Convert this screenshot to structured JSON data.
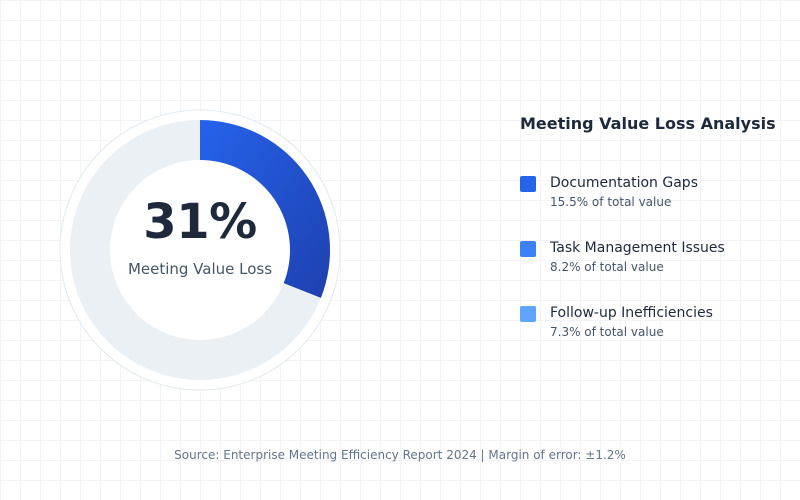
{
  "chart_data": {
    "type": "pie",
    "title": "Meeting Value Loss Analysis",
    "highlight": {
      "value_text": "31%",
      "value": 31,
      "label": "Meeting Value Loss",
      "color": "#1d4ed8"
    },
    "track_color": "#ebf0f5",
    "categories": [
      {
        "name": "Documentation Gaps",
        "detail": "15.5% of total value",
        "value": 15.5,
        "color": "#2563eb"
      },
      {
        "name": "Task Management Issues",
        "detail": "8.2% of total value",
        "value": 8.2,
        "color": "#3b82f6"
      },
      {
        "name": "Follow-up Inefficiencies",
        "detail": "7.3% of total value",
        "value": 7.3,
        "color": "#60a5fa"
      }
    ],
    "legend_position": "right"
  },
  "footer": {
    "source": "Source: Enterprise Meeting Efficiency Report 2024 | Margin of error: ±1.2%"
  }
}
